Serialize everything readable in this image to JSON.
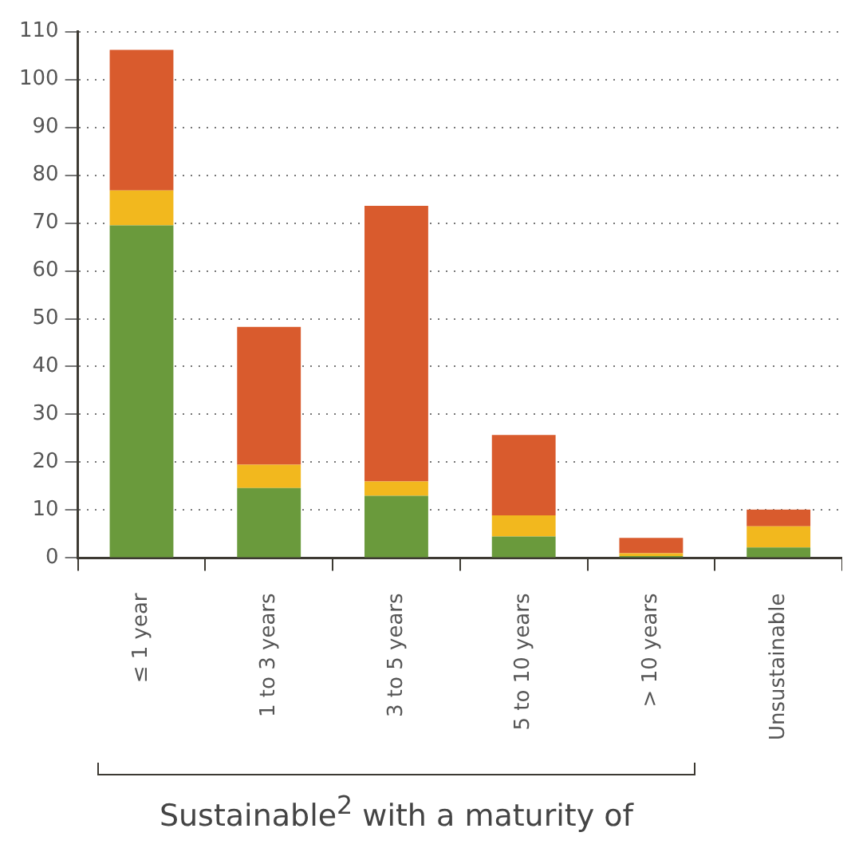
{
  "chart_data": {
    "type": "bar",
    "xlabel": "Sustainable$^{2}$ with a maturity of",
    "categories": [
      "≤ 1 year",
      "1 to 3 years",
      "3 to 5 years",
      "5 to 10 years",
      "> 10 years",
      "Unsustainable"
    ],
    "series": [
      {
        "color": "#6a9a3c",
        "values": [
          69.5,
          14.6,
          13.0,
          4.5,
          0.4,
          2.2
        ]
      },
      {
        "color": "#f2b81e",
        "values": [
          7.3,
          4.9,
          3.0,
          4.4,
          0.6,
          4.4
        ]
      },
      {
        "color": "#d95b2d",
        "values": [
          29.4,
          28.8,
          57.6,
          16.8,
          3.2,
          3.5
        ]
      }
    ],
    "stacked": true,
    "ylim": [
      0,
      110
    ],
    "yticks": [
      0,
      10,
      20,
      30,
      40,
      50,
      60,
      70,
      80,
      90,
      100,
      110
    ],
    "grid": "y",
    "legend": false
  }
}
